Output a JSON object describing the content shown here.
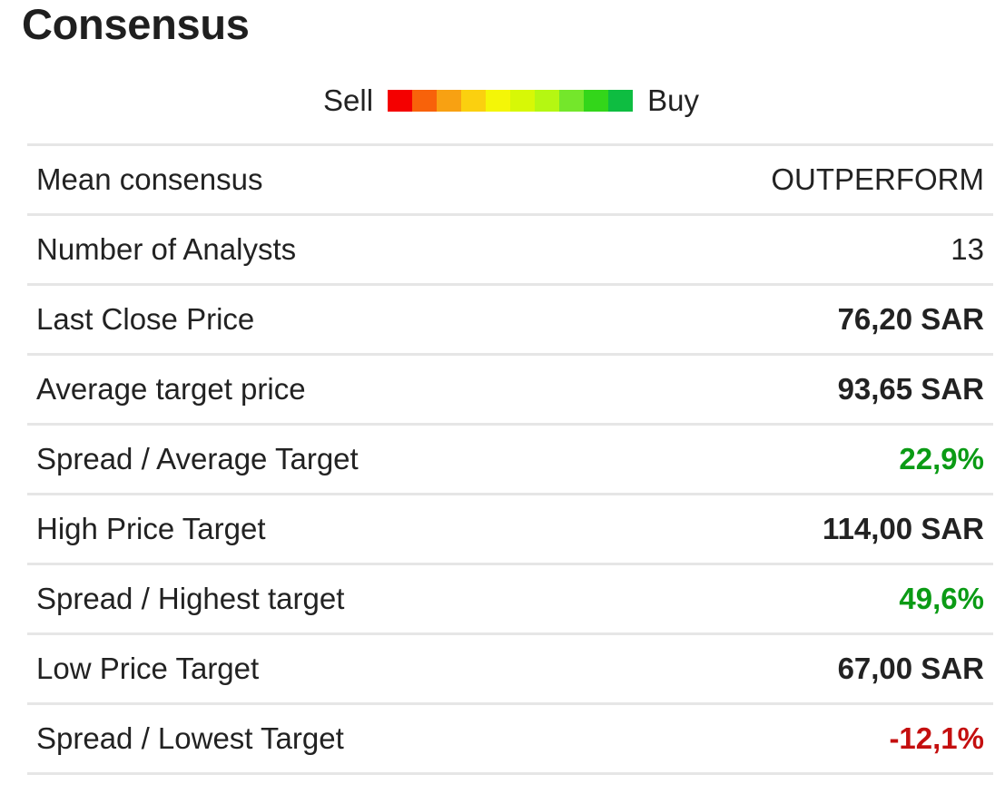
{
  "title": "Consensus",
  "scale": {
    "left_label": "Sell",
    "right_label": "Buy",
    "colors": [
      "#f40000",
      "#f8620a",
      "#f8a112",
      "#fbd00f",
      "#f4f607",
      "#d7f806",
      "#b5f712",
      "#74e72b",
      "#33d61a",
      "#0ebd41"
    ]
  },
  "rows": [
    {
      "label": "Mean consensus",
      "value": "OUTPERFORM",
      "style": "normal"
    },
    {
      "label": "Number of Analysts",
      "value": "13",
      "style": "normal"
    },
    {
      "label": "Last Close Price",
      "value": "76,20 SAR",
      "style": "bold"
    },
    {
      "label": "Average target price",
      "value": "93,65 SAR",
      "style": "bold"
    },
    {
      "label": "Spread / Average Target",
      "value": "22,9%",
      "style": "positive"
    },
    {
      "label": "High Price Target",
      "value": "114,00 SAR",
      "style": "bold"
    },
    {
      "label": "Spread / Highest target",
      "value": "49,6%",
      "style": "positive"
    },
    {
      "label": "Low Price Target",
      "value": "67,00 SAR",
      "style": "bold"
    },
    {
      "label": "Spread / Lowest Target",
      "value": "-12,1%",
      "style": "negative"
    }
  ],
  "colors": {
    "positive": "#0b9b15",
    "negative": "#c40f0f",
    "text": "#222222",
    "divider": "#e6e6e6"
  }
}
